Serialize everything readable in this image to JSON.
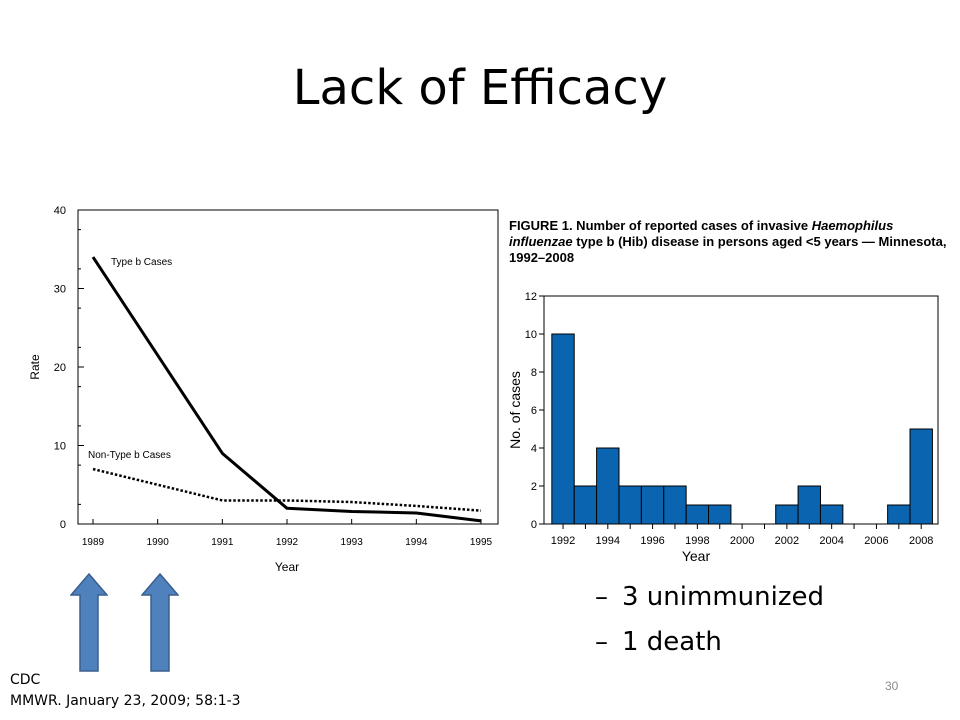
{
  "slide": {
    "title": "Lack of Efficacy",
    "bullets": [
      "3 unimmunized",
      "1 death"
    ],
    "citation_lines": [
      "CDC",
      "MMWR. January 23, 2009; 58:1-3"
    ],
    "page_number": "30",
    "arrow_color": "#4f81bd"
  },
  "chart_data": [
    {
      "type": "line",
      "x": [
        1989,
        1991,
        1992,
        1993,
        1994,
        1995
      ],
      "xticks": [
        "1989",
        "1990",
        "1991",
        "1992",
        "1993",
        "1994",
        "1995"
      ],
      "yticks": [
        "0",
        "10",
        "20",
        "30",
        "40"
      ],
      "xlabel": "Year",
      "ylabel": "Rate",
      "ylim": [
        0,
        40
      ],
      "series": [
        {
          "name": "Type b Cases",
          "style": "solid",
          "x": [
            1989,
            1991,
            1992,
            1993,
            1994,
            1995
          ],
          "values": [
            34,
            9,
            2,
            1.6,
            1.4,
            0.4
          ]
        },
        {
          "name": "Non-Type b Cases",
          "style": "dotted",
          "x": [
            1989,
            1991,
            1992,
            1993,
            1994,
            1995
          ],
          "values": [
            7,
            3,
            3,
            2.8,
            2.3,
            1.7
          ]
        }
      ]
    },
    {
      "type": "bar",
      "title_parts": [
        {
          "text": "FIGURE 1. Number of reported cases of invasive ",
          "italic": false
        },
        {
          "text": "Haemophilus influenzae",
          "italic": true
        },
        {
          "text": " type b (Hib) disease in persons aged <5 years — Minnesota, 1992–2008",
          "italic": false
        }
      ],
      "categories": [
        "1992",
        "1993",
        "1994",
        "1995",
        "1996",
        "1997",
        "1998",
        "1999",
        "2000",
        "2001",
        "2002",
        "2003",
        "2004",
        "2005",
        "2006",
        "2007",
        "2008"
      ],
      "values": [
        10,
        2,
        4,
        2,
        2,
        2,
        1,
        1,
        0,
        0,
        1,
        2,
        1,
        0,
        0,
        1,
        5
      ],
      "xticks": [
        "1992",
        "1994",
        "1996",
        "1998",
        "2000",
        "2002",
        "2004",
        "2006",
        "2008"
      ],
      "yticks": [
        "0",
        "2",
        "4",
        "6",
        "8",
        "10",
        "12"
      ],
      "xlabel": "Year",
      "ylabel": "No. of cases",
      "ylim": [
        0,
        12
      ],
      "bar_color": "#0a64b0"
    }
  ]
}
